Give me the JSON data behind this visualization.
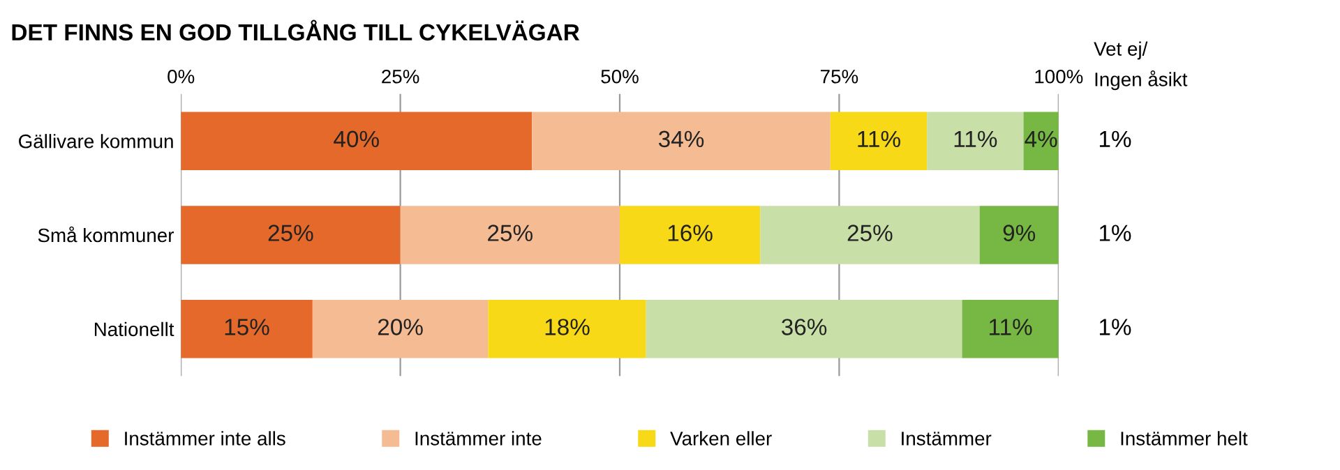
{
  "chart_data": {
    "type": "bar",
    "orientation": "horizontal",
    "stacked": true,
    "title": "DET FINNS EN GOD TILLGÅNG TILL CYKELVÄGAR",
    "categories": [
      "Gällivare kommun",
      "Små kommuner",
      "Nationellt"
    ],
    "series": [
      {
        "name": "Instämmer inte alls",
        "color": "#e5692a",
        "values": [
          40,
          25,
          15
        ],
        "value_labels": [
          "40%",
          "25%",
          "15%"
        ]
      },
      {
        "name": "Instämmer inte",
        "color": "#f5bc94",
        "values": [
          34,
          25,
          20
        ],
        "value_labels": [
          "34%",
          "25%",
          "20%"
        ]
      },
      {
        "name": "Varken eller",
        "color": "#f7d918",
        "values": [
          11,
          16,
          18
        ],
        "value_labels": [
          "11%",
          "16%",
          "18%"
        ]
      },
      {
        "name": "Instämmer",
        "color": "#c8dfa8",
        "values": [
          11,
          25,
          36
        ],
        "value_labels": [
          "11%",
          "25%",
          "36%"
        ]
      },
      {
        "name": "Instämmer helt",
        "color": "#76b843",
        "values": [
          4,
          9,
          11
        ],
        "value_labels": [
          "4%",
          "9%",
          "11%"
        ]
      }
    ],
    "xlim": [
      0,
      100
    ],
    "xticks": [
      {
        "value": 0,
        "label": "0%"
      },
      {
        "value": 25,
        "label": "25%"
      },
      {
        "value": 50,
        "label": "50%"
      },
      {
        "value": 75,
        "label": "75%"
      },
      {
        "value": 100,
        "label": "100%"
      }
    ],
    "grid": "x",
    "legend": "bottom",
    "annotations": [
      "Vet ej/\nIngen åsikt",
      "1%",
      "1%",
      "1%"
    ]
  }
}
